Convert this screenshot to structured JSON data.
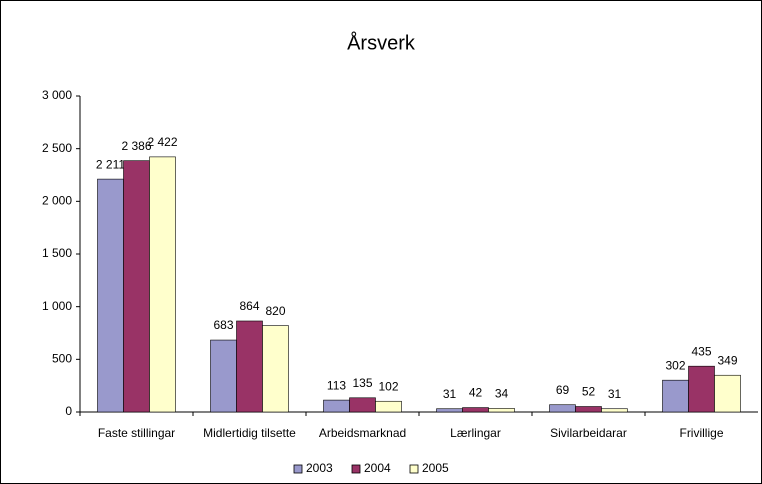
{
  "chart_data": {
    "type": "bar",
    "title": "Årsverk",
    "categories": [
      "Faste stillingar",
      "Midlertidig tilsette",
      "Arbeidsmarknad",
      "Lærlingar",
      "Sivilarbeidarar",
      "Frivillige"
    ],
    "series": [
      {
        "name": "2003",
        "color": "#9999cc",
        "values": [
          2211,
          683,
          113,
          31,
          69,
          302
        ],
        "value_labels": [
          "2 211",
          "683",
          "113",
          "31",
          "69",
          "302"
        ]
      },
      {
        "name": "2004",
        "color": "#993366",
        "values": [
          2386,
          864,
          135,
          42,
          52,
          435
        ],
        "value_labels": [
          "2 386",
          "864",
          "135",
          "42",
          "52",
          "435"
        ]
      },
      {
        "name": "2005",
        "color": "#ffffcc",
        "values": [
          2422,
          820,
          102,
          34,
          31,
          349
        ],
        "value_labels": [
          "2 422",
          "820",
          "102",
          "34",
          "31",
          "349"
        ]
      }
    ],
    "ylim": [
      0,
      3000
    ],
    "yticks": [
      0,
      500,
      {
        "value": 1000,
        "label": "1 000"
      },
      {
        "value": 1500,
        "label": "1 500"
      },
      {
        "value": 2000,
        "label": "2 000"
      },
      {
        "value": 2500,
        "label": "2 500"
      },
      {
        "value": 3000,
        "label": "3 000"
      }
    ],
    "grid": false,
    "legend": "bottom"
  }
}
